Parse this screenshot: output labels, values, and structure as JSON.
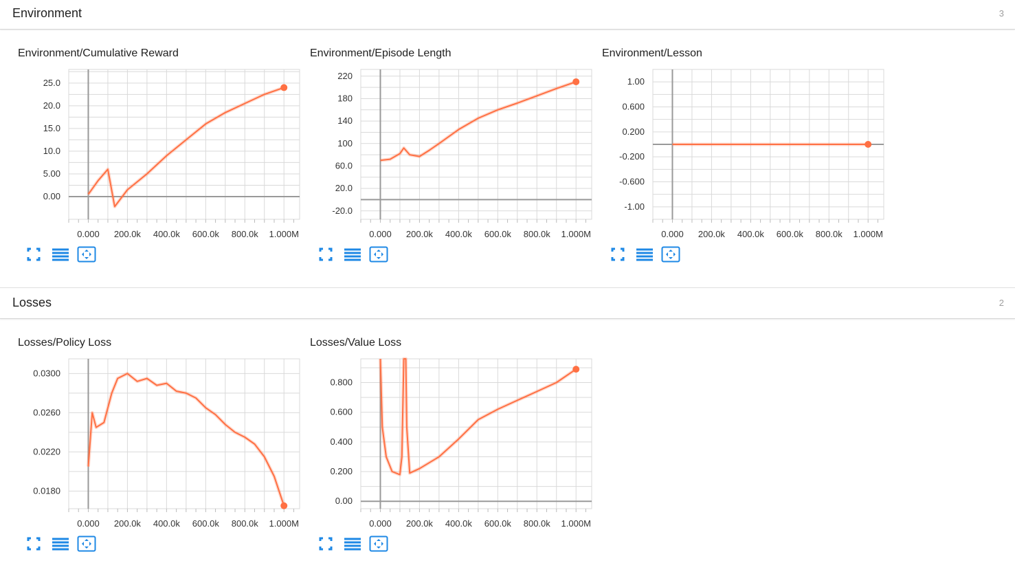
{
  "colors": {
    "series": "#ff7043",
    "grid": "#d9d9d9",
    "axis": "#999999",
    "icon": "#1e88e5"
  },
  "sections": [
    {
      "title": "Environment",
      "count": "3"
    },
    {
      "title": "Losses",
      "count": "2"
    }
  ],
  "toolbar": {
    "icons": [
      "fullscreen-icon",
      "list-icon",
      "fit-domain-icon"
    ]
  },
  "chart_data": [
    {
      "type": "line",
      "title": "Environment/Cumulative Reward",
      "x_ticks": [
        "0.000",
        "200.0k",
        "400.0k",
        "600.0k",
        "800.0k",
        "1.000M"
      ],
      "y_ticks": [
        "0.00",
        "5.00",
        "10.0",
        "15.0",
        "20.0",
        "25.0"
      ],
      "xlim": [
        -100000,
        1080000
      ],
      "ylim": [
        -5,
        28
      ],
      "grid": true,
      "series": [
        {
          "x": [
            0,
            50000,
            100000,
            135000,
            200000,
            300000,
            400000,
            500000,
            600000,
            700000,
            800000,
            900000,
            1000000
          ],
          "y": [
            0.5,
            3.5,
            6,
            -2.2,
            1.5,
            5,
            9,
            12.5,
            16,
            18.5,
            20.5,
            22.5,
            24
          ]
        }
      ]
    },
    {
      "type": "line",
      "title": "Environment/Episode Length",
      "x_ticks": [
        "0.000",
        "200.0k",
        "400.0k",
        "600.0k",
        "800.0k",
        "1.000M"
      ],
      "y_ticks": [
        "-20.0",
        "20.0",
        "60.0",
        "100",
        "140",
        "180",
        "220"
      ],
      "xlim": [
        -100000,
        1080000
      ],
      "ylim": [
        -35,
        232
      ],
      "grid": true,
      "series": [
        {
          "x": [
            0,
            50000,
            100000,
            120000,
            150000,
            200000,
            250000,
            300000,
            400000,
            500000,
            600000,
            700000,
            800000,
            900000,
            1000000
          ],
          "y": [
            70,
            72,
            82,
            92,
            80,
            77,
            88,
            100,
            125,
            145,
            160,
            172,
            185,
            198,
            210
          ]
        }
      ]
    },
    {
      "type": "line",
      "title": "Environment/Lesson",
      "x_ticks": [
        "0.000",
        "200.0k",
        "400.0k",
        "600.0k",
        "800.0k",
        "1.000M"
      ],
      "y_ticks": [
        "-1.00",
        "-0.600",
        "-0.200",
        "0.200",
        "0.600",
        "1.00"
      ],
      "xlim": [
        -100000,
        1080000
      ],
      "ylim": [
        -1.2,
        1.2
      ],
      "grid": true,
      "series": [
        {
          "x": [
            0,
            1000000
          ],
          "y": [
            0,
            0
          ]
        }
      ]
    },
    {
      "type": "line",
      "title": "Losses/Policy Loss",
      "x_ticks": [
        "0.000",
        "200.0k",
        "400.0k",
        "600.0k",
        "800.0k",
        "1.000M"
      ],
      "y_ticks": [
        "0.0180",
        "0.0220",
        "0.0260",
        "0.0300"
      ],
      "xlim": [
        -100000,
        1080000
      ],
      "ylim": [
        0.0162,
        0.0315
      ],
      "grid": true,
      "series": [
        {
          "x": [
            0,
            20000,
            40000,
            80000,
            120000,
            150000,
            200000,
            250000,
            300000,
            350000,
            400000,
            450000,
            500000,
            550000,
            600000,
            650000,
            700000,
            750000,
            800000,
            850000,
            900000,
            950000,
            1000000
          ],
          "y": [
            0.0205,
            0.026,
            0.0245,
            0.025,
            0.028,
            0.0295,
            0.03,
            0.0292,
            0.0295,
            0.0288,
            0.029,
            0.0282,
            0.028,
            0.0275,
            0.0265,
            0.0258,
            0.0248,
            0.024,
            0.0235,
            0.0228,
            0.0215,
            0.0195,
            0.0165
          ]
        }
      ]
    },
    {
      "type": "line",
      "title": "Losses/Value Loss",
      "x_ticks": [
        "0.000",
        "200.0k",
        "400.0k",
        "600.0k",
        "800.0k",
        "1.000M"
      ],
      "y_ticks": [
        "0.00",
        "0.200",
        "0.400",
        "0.600",
        "0.800"
      ],
      "xlim": [
        -100000,
        1080000
      ],
      "ylim": [
        -0.05,
        0.96
      ],
      "grid": true,
      "series": [
        {
          "x": [
            0,
            10000,
            30000,
            60000,
            100000,
            110000,
            120000,
            130000,
            135000,
            150000,
            200000,
            300000,
            400000,
            500000,
            600000,
            700000,
            800000,
            900000,
            1000000
          ],
          "y": [
            0.96,
            0.5,
            0.3,
            0.2,
            0.18,
            0.3,
            0.96,
            0.96,
            0.5,
            0.19,
            0.22,
            0.3,
            0.42,
            0.55,
            0.62,
            0.68,
            0.74,
            0.8,
            0.89
          ]
        }
      ]
    }
  ]
}
